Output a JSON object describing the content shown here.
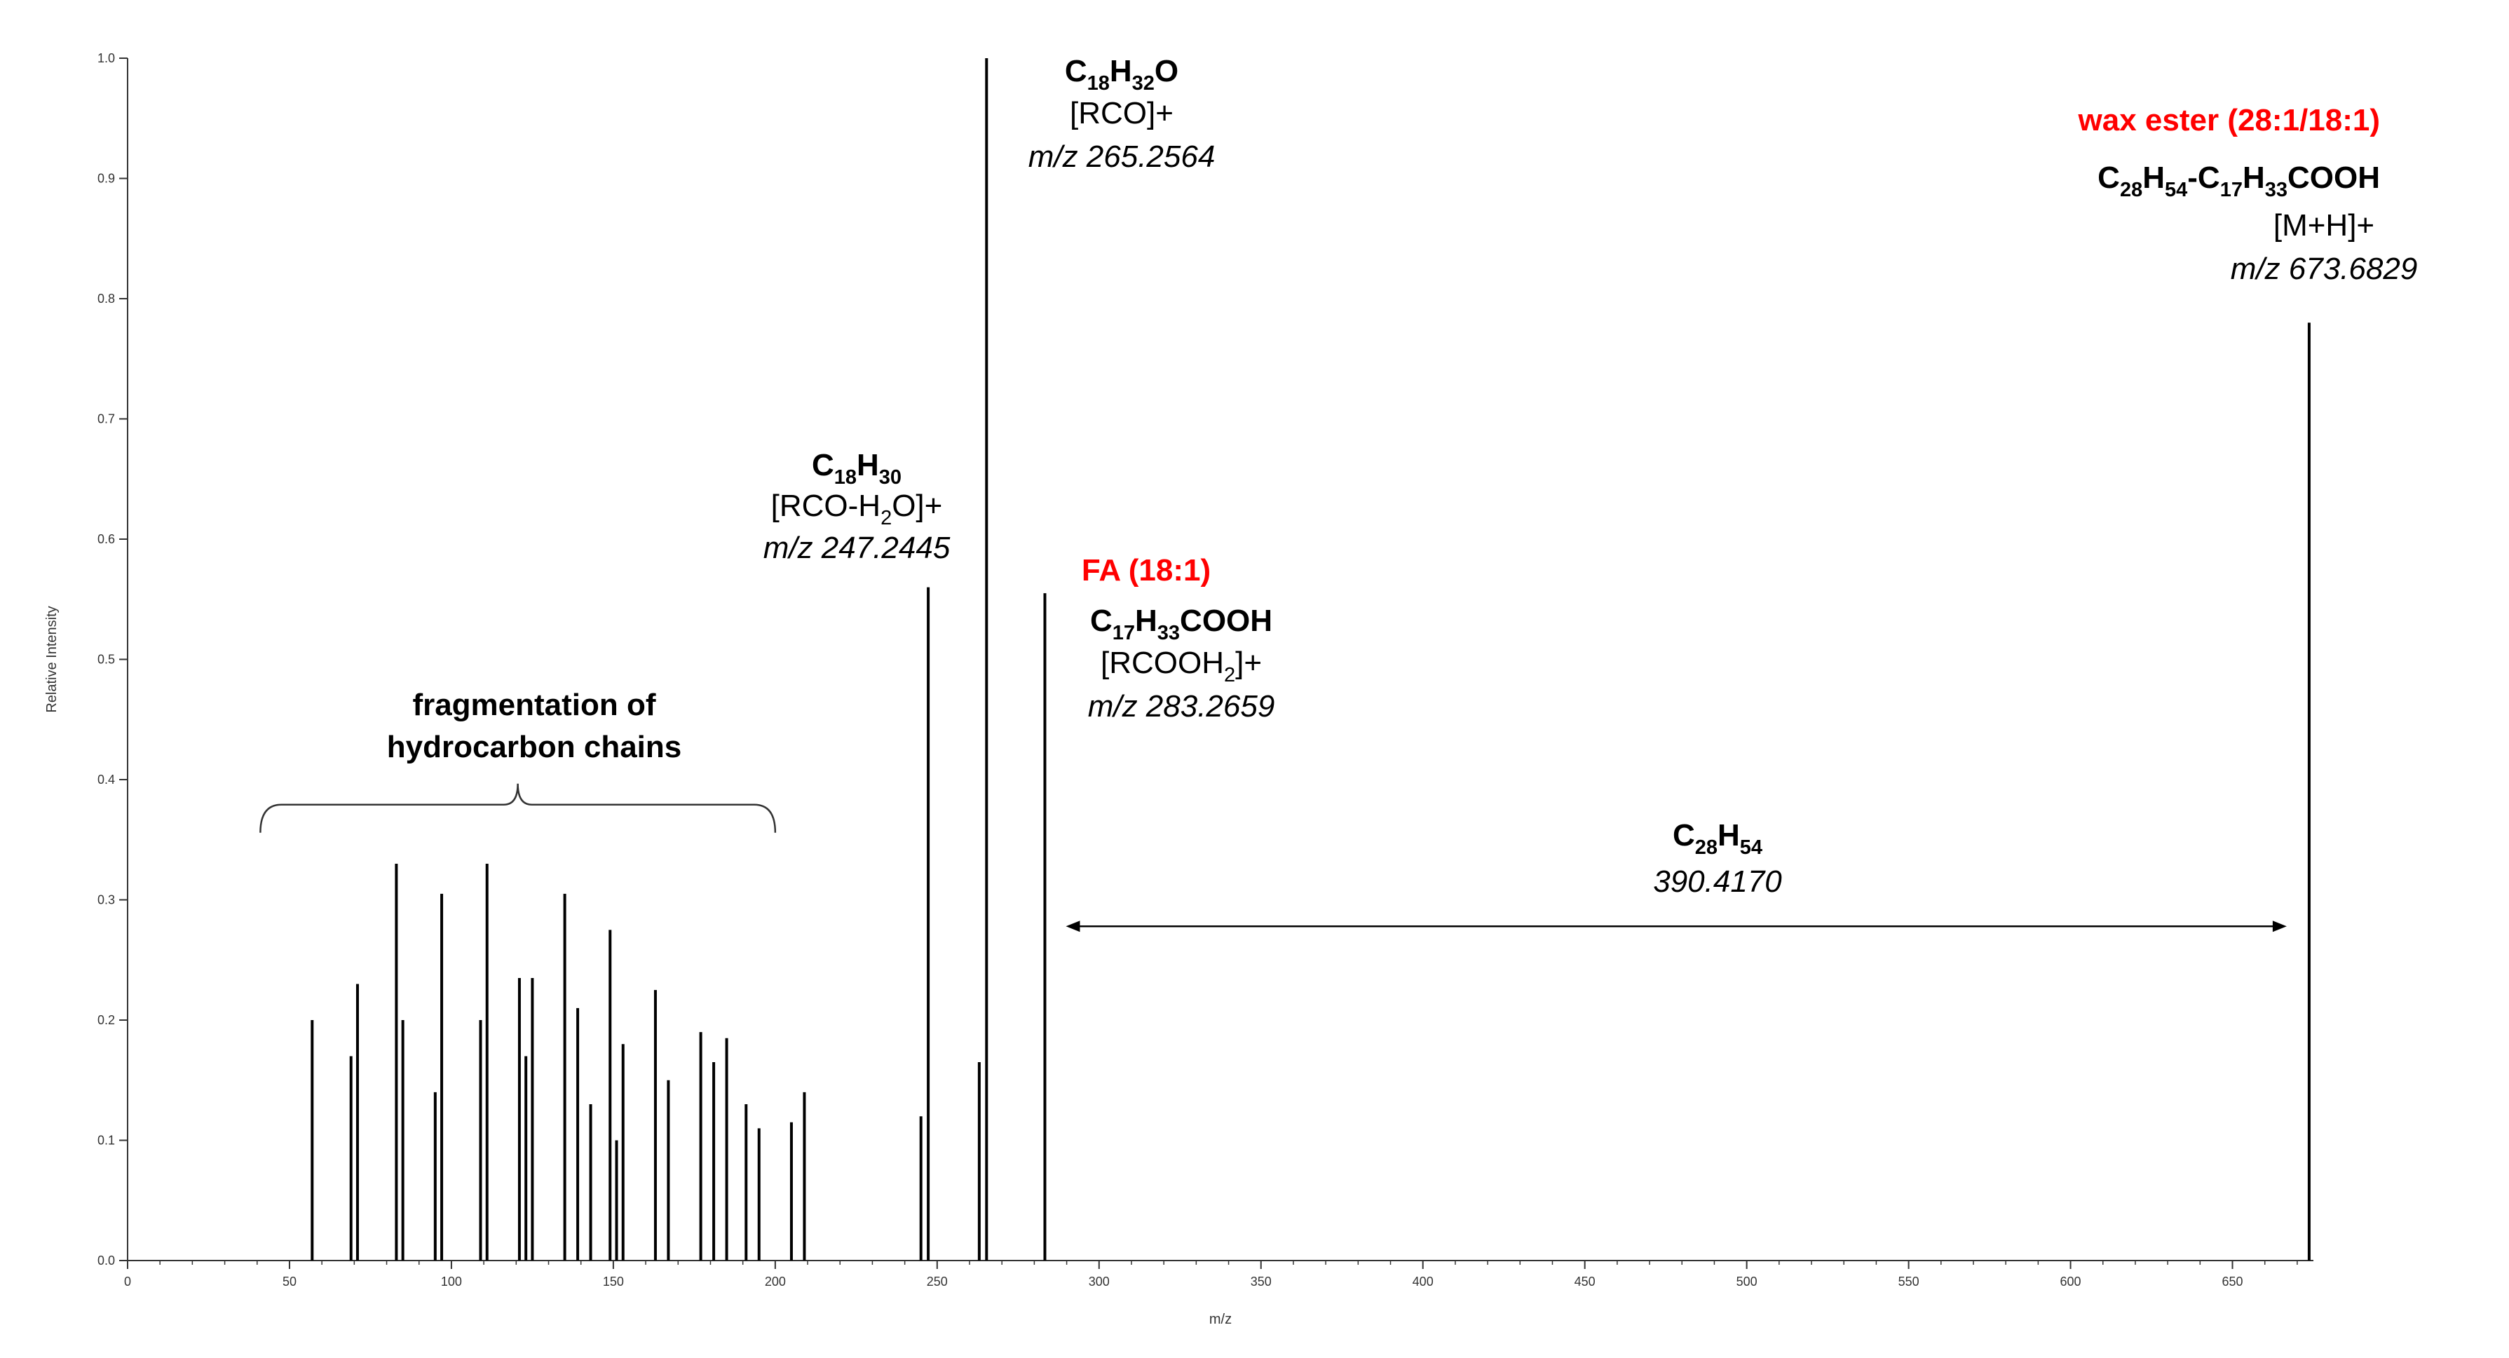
{
  "chart_data": {
    "type": "bar",
    "title": "",
    "xlabel": "m/z",
    "ylabel": "Relative Intensity",
    "xlim": [
      0,
      675
    ],
    "ylim": [
      0,
      1.0
    ],
    "x_ticks": [
      0,
      50,
      100,
      150,
      200,
      250,
      300,
      350,
      400,
      450,
      500,
      550,
      600,
      650
    ],
    "y_ticks": [
      "0.0",
      "0.1",
      "0.2",
      "0.3",
      "0.4",
      "0.5",
      "0.6",
      "0.7",
      "0.8",
      "0.9",
      "1.0"
    ],
    "grid": false,
    "legend": "none",
    "peaks": [
      {
        "x": 57,
        "y": 0.2
      },
      {
        "x": 69,
        "y": 0.17
      },
      {
        "x": 71,
        "y": 0.23
      },
      {
        "x": 83,
        "y": 0.33
      },
      {
        "x": 85,
        "y": 0.2
      },
      {
        "x": 95,
        "y": 0.14
      },
      {
        "x": 97,
        "y": 0.305
      },
      {
        "x": 109,
        "y": 0.2
      },
      {
        "x": 111,
        "y": 0.33
      },
      {
        "x": 121,
        "y": 0.235
      },
      {
        "x": 123,
        "y": 0.17
      },
      {
        "x": 125,
        "y": 0.235
      },
      {
        "x": 135,
        "y": 0.305
      },
      {
        "x": 139,
        "y": 0.21
      },
      {
        "x": 143,
        "y": 0.13
      },
      {
        "x": 149,
        "y": 0.275
      },
      {
        "x": 151,
        "y": 0.1
      },
      {
        "x": 153,
        "y": 0.18
      },
      {
        "x": 163,
        "y": 0.225
      },
      {
        "x": 167,
        "y": 0.15
      },
      {
        "x": 177,
        "y": 0.19
      },
      {
        "x": 181,
        "y": 0.165
      },
      {
        "x": 185,
        "y": 0.185
      },
      {
        "x": 191,
        "y": 0.13
      },
      {
        "x": 195,
        "y": 0.11
      },
      {
        "x": 205,
        "y": 0.115
      },
      {
        "x": 209,
        "y": 0.14
      },
      {
        "x": 245,
        "y": 0.12
      },
      {
        "x": 247.2445,
        "y": 0.56
      },
      {
        "x": 263,
        "y": 0.165
      },
      {
        "x": 265.2564,
        "y": 1.0
      },
      {
        "x": 283.2659,
        "y": 0.555
      },
      {
        "x": 673.6829,
        "y": 0.78
      }
    ],
    "annotations": {
      "fragmentation": {
        "line1": "fragmentation of",
        "line2": "hydrocarbon chains",
        "brace_from": 41,
        "brace_to": 200,
        "brace_y": 0.35
      },
      "rco_h2o": {
        "formula": {
          "parts": [
            [
              "C",
              "n"
            ],
            [
              "18",
              "s"
            ],
            [
              "H",
              "n"
            ],
            [
              "30",
              "s"
            ]
          ]
        },
        "ion": {
          "parts": [
            [
              "[RCO-H",
              "n"
            ],
            [
              "2",
              "s"
            ],
            [
              "O]+",
              "n"
            ]
          ]
        },
        "mz": "m/z 247.2445"
      },
      "rco": {
        "formula": {
          "parts": [
            [
              "C",
              "n"
            ],
            [
              "18",
              "s"
            ],
            [
              "H",
              "n"
            ],
            [
              "32",
              "s"
            ],
            [
              "O",
              "n"
            ]
          ]
        },
        "ion": "[RCO]+",
        "mz": "m/z 265.2564"
      },
      "fa": {
        "name": "FA (18:1)",
        "formula": {
          "parts": [
            [
              "C",
              "n"
            ],
            [
              "17",
              "s"
            ],
            [
              "H",
              "n"
            ],
            [
              "33",
              "s"
            ],
            [
              "COOH",
              "n"
            ]
          ]
        },
        "ion": {
          "parts": [
            [
              "[RCOOH",
              "n"
            ],
            [
              "2",
              "s"
            ],
            [
              "]+",
              "n"
            ]
          ]
        },
        "mz": "m/z 283.2659"
      },
      "wax_ester": {
        "name": "wax ester (28:1/18:1)",
        "formula": {
          "parts": [
            [
              "C",
              "n"
            ],
            [
              "28",
              "s"
            ],
            [
              "H",
              "n"
            ],
            [
              "54",
              "s"
            ],
            [
              "-C",
              "n"
            ],
            [
              "17",
              "s"
            ],
            [
              "H",
              "n"
            ],
            [
              "33",
              "s"
            ],
            [
              "COOH",
              "n"
            ]
          ]
        },
        "ion": "[M+H]+",
        "mz": "m/z 673.6829"
      },
      "neutral_loss": {
        "formula": {
          "parts": [
            [
              "C",
              "n"
            ],
            [
              "28",
              "s"
            ],
            [
              "H",
              "n"
            ],
            [
              "54",
              "s"
            ]
          ]
        },
        "value": "390.4170",
        "arrow_from": 283.2659,
        "arrow_to": 673.6829,
        "arrow_y": 0.278
      }
    },
    "colors": {
      "peaks": "#000000",
      "axis": "#333333",
      "highlight": "#ff0000"
    }
  }
}
